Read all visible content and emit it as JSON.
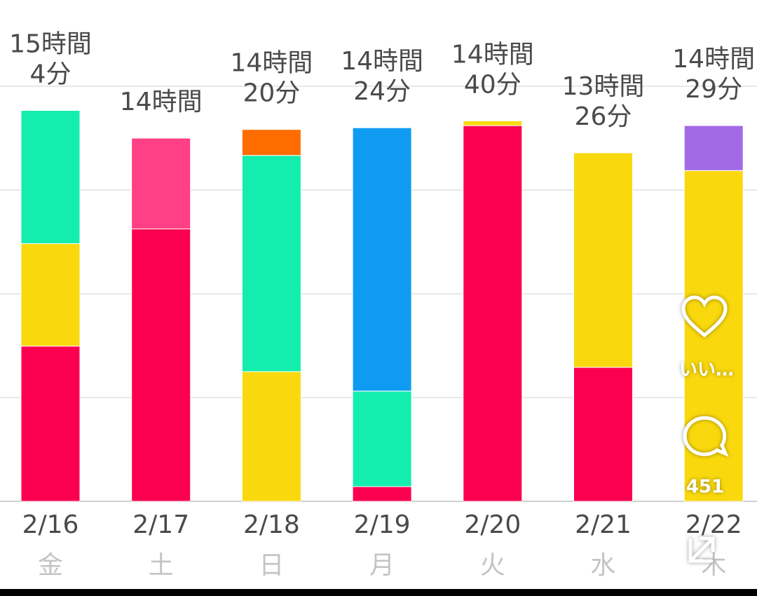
{
  "chart_data": {
    "type": "bar",
    "stacked": true,
    "categories": [
      "2/16",
      "2/17",
      "2/18",
      "2/19",
      "2/20",
      "2/21",
      "2/22"
    ],
    "weekdays": [
      "金",
      "土",
      "日",
      "月",
      "火",
      "水",
      "木"
    ],
    "series": [
      {
        "color": "#fb0050",
        "values": [
          359,
          630,
          null,
          34,
          869,
          310,
          null
        ]
      },
      {
        "color": "#f9d90d",
        "values": [
          237,
          null,
          300,
          null,
          11,
          496,
          765
        ]
      },
      {
        "color": "#13eeae",
        "values": [
          308,
          null,
          500,
          221,
          null,
          null,
          null
        ]
      },
      {
        "color": "#ff3f86",
        "values": [
          null,
          210,
          null,
          null,
          null,
          null,
          null
        ]
      },
      {
        "color": "#ff6d00",
        "values": [
          null,
          null,
          60,
          null,
          null,
          null,
          null
        ]
      },
      {
        "color": "#0f9bf2",
        "values": [
          null,
          null,
          null,
          609,
          null,
          null,
          null
        ]
      },
      {
        "color": "#a36ae6",
        "values": [
          null,
          null,
          null,
          null,
          null,
          null,
          104
        ]
      }
    ],
    "totals": {
      "values": [
        904,
        840,
        860,
        864,
        880,
        806,
        869
      ],
      "value_labels": [
        [
          "15時間",
          "4分"
        ],
        [
          "14時間"
        ],
        [
          "14時間",
          "20分"
        ],
        [
          "14時間",
          "24分"
        ],
        [
          "14時間",
          "40分"
        ],
        [
          "13時間",
          "26分"
        ],
        [
          "14時間",
          "29分"
        ]
      ]
    },
    "ylim": [
      0,
      960
    ],
    "yticks": [
      0,
      240,
      480,
      720,
      960
    ],
    "grid": true
  },
  "overlay": {
    "like_label": "いい…",
    "comment_count": 451
  }
}
